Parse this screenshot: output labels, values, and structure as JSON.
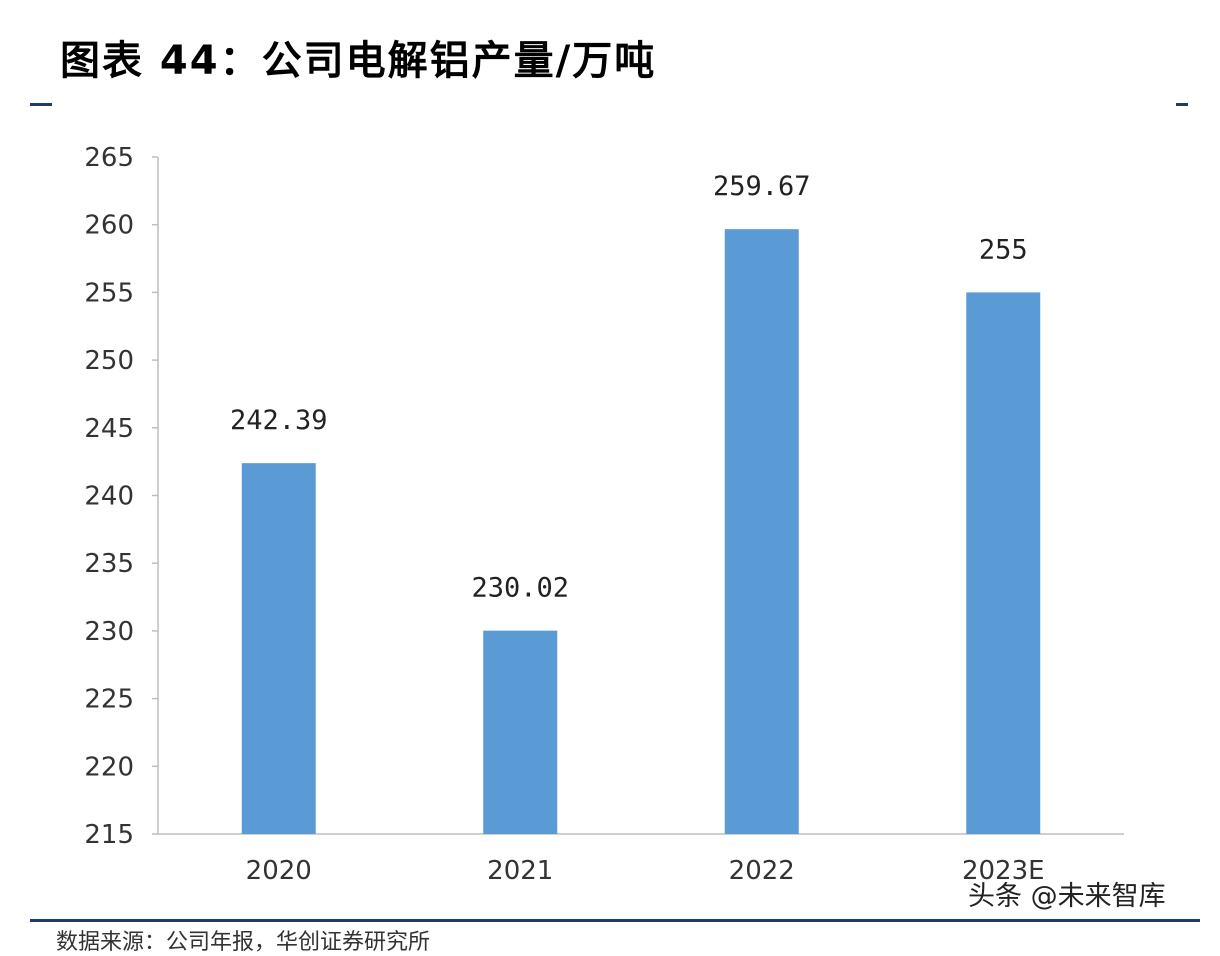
{
  "title": "图表 44：公司电解铝产量/万吨",
  "source": "数据来源：公司年报，华创证券研究所",
  "watermark": "头条 @未来智库",
  "chart_data": {
    "type": "bar",
    "title": "图表 44：公司电解铝产量/万吨",
    "categories": [
      "2020",
      "2021",
      "2022",
      "2023E"
    ],
    "values": [
      242.39,
      230.02,
      259.67,
      255
    ],
    "data_labels": [
      "242.39",
      "230.02",
      "259.67",
      "255"
    ],
    "ylim": [
      215,
      265
    ],
    "yticks": [
      215,
      220,
      225,
      230,
      235,
      240,
      245,
      250,
      255,
      260,
      265
    ],
    "xlabel": "",
    "ylabel": "",
    "grid": false,
    "bar_color": "#5b9bd5",
    "axis_color": "#bfbfbf"
  }
}
